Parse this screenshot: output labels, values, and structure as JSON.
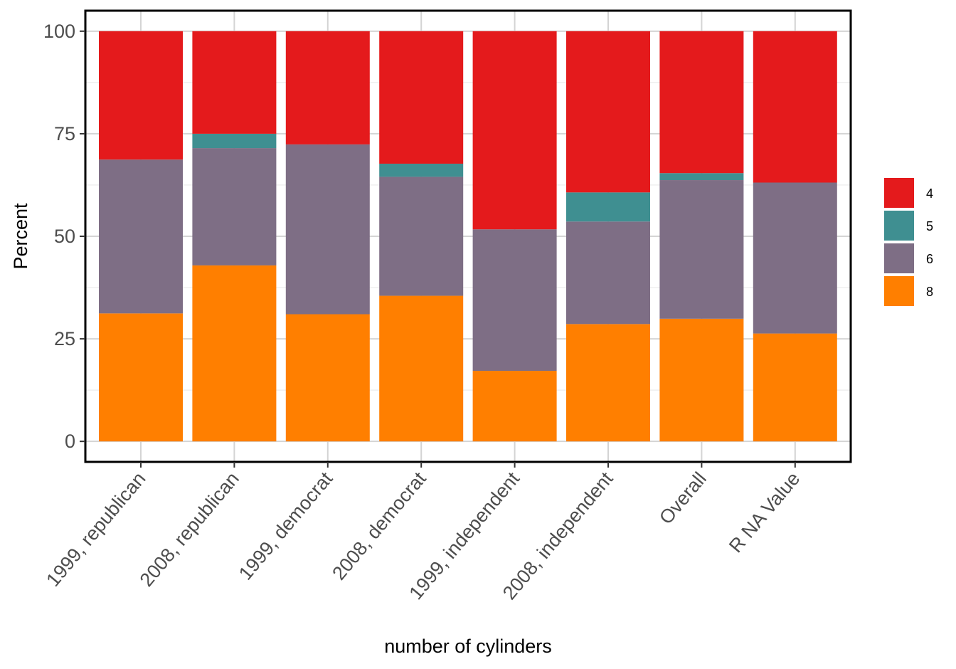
{
  "chart_data": {
    "type": "bar",
    "stacked": true,
    "title": "",
    "xlabel": "number of cylinders",
    "ylabel": "Percent",
    "ylim": [
      -5,
      105
    ],
    "yticks": [
      0,
      25,
      50,
      75,
      100
    ],
    "grid": true,
    "legend_position": "right",
    "categories": [
      "1999, republican",
      "2008, republican",
      "1999, democrat",
      "2008, democrat",
      "1999, independent",
      "2008, independent",
      "Overall",
      "R NA Value"
    ],
    "series": [
      {
        "name": "8",
        "color": "#ff7f00",
        "values": [
          31.2,
          42.9,
          31.0,
          35.5,
          17.2,
          28.6,
          29.9,
          26.3
        ]
      },
      {
        "name": "6",
        "color": "#7e6e85",
        "values": [
          37.5,
          28.6,
          41.4,
          29.0,
          34.5,
          25.0,
          33.8,
          36.8
        ]
      },
      {
        "name": "5",
        "color": "#3f8f91",
        "values": [
          0,
          3.5,
          0,
          3.2,
          0,
          7.1,
          1.7,
          0
        ]
      },
      {
        "name": "4",
        "color": "#e41a1c",
        "values": [
          31.3,
          25.0,
          27.6,
          32.3,
          48.3,
          39.3,
          34.6,
          36.9
        ]
      }
    ],
    "legend_order": [
      "4",
      "5",
      "6",
      "8"
    ]
  }
}
